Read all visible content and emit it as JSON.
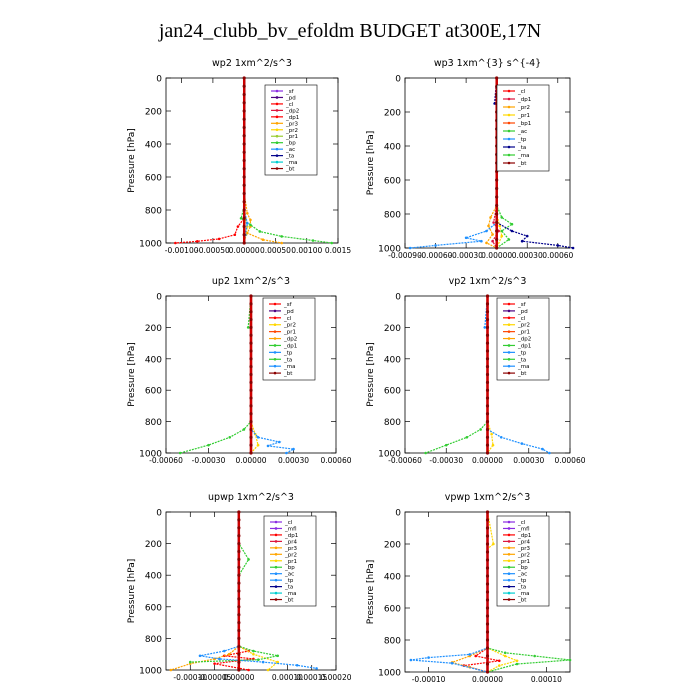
{
  "figure_title": "jan24_clubb_bv_efoldm  BUDGET at300E,17N",
  "chart_data": [
    {
      "type": "line",
      "title": "wp2   1xm^2/s^3",
      "xlabel": "",
      "ylabel": "Pressure [hPa]",
      "xlim": [
        -0.00125,
        0.0015
      ],
      "ylim": [
        1000,
        0
      ],
      "xticks": [
        -0.001,
        -0.0005,
        0.0,
        0.0005,
        0.001,
        0.0015
      ],
      "xtick_labels": [
        "-0.00100",
        "-0.00050",
        "0.00000",
        "0.00050",
        "0.00100",
        "0.0015"
      ],
      "yticks": [
        0,
        200,
        400,
        600,
        800,
        1000
      ],
      "legend": [
        "_sf",
        "_pd",
        "_cl",
        "_dp2",
        "_dp1",
        "_pr3",
        "_pr2",
        "_pr1",
        "_bp",
        "_ac",
        "_ta",
        "_ma",
        "_bt"
      ],
      "series": [
        {
          "name": "_sf",
          "color": "#8a2be2",
          "x": [
            0,
            0,
            0
          ],
          "y": [
            0,
            500,
            1000
          ]
        },
        {
          "name": "_pd",
          "color": "#4b0082",
          "x": [
            0,
            0,
            0
          ],
          "y": [
            0,
            500,
            1000
          ]
        },
        {
          "name": "_dp1",
          "color": "#ff0000",
          "x": [
            0,
            0,
            0,
            -0.0001,
            -0.00015,
            -0.0004,
            -0.00075,
            -0.0011
          ],
          "y": [
            0,
            700,
            850,
            900,
            950,
            975,
            990,
            1000
          ]
        },
        {
          "name": "_pr3",
          "color": "#ffa500",
          "x": [
            0,
            0,
            5e-05,
            0.0001,
            0.0001,
            5e-05,
            0.0003,
            0.0006
          ],
          "y": [
            0,
            700,
            820,
            860,
            900,
            940,
            980,
            1000
          ]
        },
        {
          "name": "_pr2",
          "color": "#ffd700",
          "x": [
            0,
            0,
            2e-05,
            5e-05,
            3e-05,
            0
          ],
          "y": [
            0,
            750,
            850,
            900,
            950,
            1000
          ]
        },
        {
          "name": "_bp",
          "color": "#32cd32",
          "x": [
            0,
            0,
            -5e-05,
            0.0001,
            0.00025,
            0.0006,
            0.0011,
            0.0014
          ],
          "y": [
            0,
            780,
            850,
            890,
            930,
            960,
            985,
            1000
          ]
        },
        {
          "name": "_ac",
          "color": "#1e90ff",
          "x": [
            0,
            0,
            5e-05,
            2e-05,
            0
          ],
          "y": [
            0,
            800,
            880,
            950,
            1000
          ]
        },
        {
          "name": "_ma",
          "color": "#00ced1",
          "x": [
            0,
            0,
            0
          ],
          "y": [
            0,
            500,
            1000
          ]
        },
        {
          "name": "_bt",
          "color": "#8b0000",
          "x": [
            0,
            0,
            0
          ],
          "y": [
            0,
            500,
            1000
          ]
        }
      ]
    },
    {
      "type": "line",
      "title": "wp3   1xm^{3} s^{-4}",
      "xlabel": "",
      "ylabel": "Pressure [hPa]",
      "xlim": [
        -0.0009,
        0.00072
      ],
      "ylim": [
        1000,
        0
      ],
      "xticks": [
        -0.0009,
        -0.0006,
        -0.0003,
        0.0,
        0.0003,
        0.0006
      ],
      "xtick_labels": [
        "-0.00090",
        "-0.00060",
        "-0.00030",
        "0.00000",
        "0.00030",
        "0.00060"
      ],
      "yticks": [
        0,
        200,
        400,
        600,
        800,
        1000
      ],
      "legend": [
        "_cl",
        "_dp1",
        "_pr2",
        "_pr1",
        "_bp1",
        "_ac",
        "_tp",
        "_ta",
        "_ma",
        "_bt"
      ],
      "series": [
        {
          "name": "_cl",
          "color": "#ff0000",
          "x": [
            0,
            0,
            0
          ],
          "y": [
            0,
            500,
            1000
          ]
        },
        {
          "name": "_dp1",
          "color": "#dc143c",
          "x": [
            0,
            0,
            -3e-05,
            2e-05,
            -4e-05,
            0
          ],
          "y": [
            0,
            750,
            850,
            900,
            960,
            1000
          ]
        },
        {
          "name": "_pr2",
          "color": "#ffa500",
          "x": [
            0,
            0,
            -6e-05,
            -8e-05,
            -4e-05,
            -0.0001,
            0
          ],
          "y": [
            0,
            750,
            820,
            870,
            920,
            970,
            1000
          ]
        },
        {
          "name": "_pr1",
          "color": "#ffd700",
          "x": [
            0,
            0,
            3e-05,
            5e-05,
            0
          ],
          "y": [
            0,
            800,
            870,
            930,
            1000
          ]
        },
        {
          "name": "_ac",
          "color": "#32cd32",
          "x": [
            0,
            0,
            5e-05,
            0.00015,
            5e-05,
            0.00012,
            0
          ],
          "y": [
            0,
            750,
            820,
            860,
            900,
            950,
            1000
          ]
        },
        {
          "name": "_tp",
          "color": "#1e90ff",
          "x": [
            0,
            0,
            -0.0001,
            -0.0003,
            -0.00015,
            -0.0006,
            -0.00085
          ],
          "y": [
            0,
            850,
            900,
            940,
            960,
            985,
            1000
          ]
        },
        {
          "name": "_ta",
          "color": "#00008b",
          "x": [
            0,
            -2e-05,
            2e-05,
            0,
            0,
            0.00015,
            0.0003,
            0.00025,
            0.0006,
            0.00075
          ],
          "y": [
            0,
            150,
            170,
            190,
            850,
            900,
            930,
            960,
            985,
            1000
          ]
        },
        {
          "name": "_bt",
          "color": "#8b0000",
          "x": [
            0,
            0,
            0
          ],
          "y": [
            0,
            500,
            1000
          ]
        }
      ]
    },
    {
      "type": "line",
      "title": "up2   1xm^2/s^3",
      "xlabel": "",
      "ylabel": "Pressure [hPa]",
      "xlim": [
        -0.0006,
        0.0006
      ],
      "ylim": [
        1000,
        0
      ],
      "xticks": [
        -0.0006,
        -0.0003,
        0.0,
        0.0003,
        0.0006
      ],
      "xtick_labels": [
        "-0.00060",
        "-0.00030",
        "0.00000",
        "0.00030",
        "0.00060"
      ],
      "yticks": [
        0,
        200,
        400,
        600,
        800,
        1000
      ],
      "legend": [
        "_sf",
        "_pd",
        "_cl",
        "_pr2",
        "_pr1",
        "_dp2",
        "_dp1",
        "_tp",
        "_ta",
        "_ma",
        "_bt"
      ],
      "series": [
        {
          "name": "_sf",
          "color": "#ff0000",
          "x": [
            0,
            0,
            0
          ],
          "y": [
            0,
            500,
            1000
          ]
        },
        {
          "name": "_pr2",
          "color": "#ffd700",
          "x": [
            0,
            0,
            3e-05,
            5e-05,
            0
          ],
          "y": [
            0,
            800,
            880,
            950,
            1000
          ]
        },
        {
          "name": "_dp1",
          "color": "#32cd32",
          "x": [
            0,
            -2e-05,
            0,
            0,
            -5e-05,
            -0.00015,
            -0.0003,
            -0.0005
          ],
          "y": [
            0,
            200,
            210,
            800,
            850,
            900,
            950,
            1000
          ]
        },
        {
          "name": "_tp",
          "color": "#1e90ff",
          "x": [
            0,
            0,
            5e-05,
            0.0002,
            0.00012,
            0.0003,
            0.00025
          ],
          "y": [
            0,
            850,
            900,
            930,
            955,
            975,
            1000
          ]
        },
        {
          "name": "_bt",
          "color": "#8b0000",
          "x": [
            0,
            0,
            0
          ],
          "y": [
            0,
            500,
            1000
          ]
        }
      ]
    },
    {
      "type": "line",
      "title": "vp2   1xm^2/s^3",
      "xlabel": "",
      "ylabel": "Pressure [hPa]",
      "xlim": [
        -0.0006,
        0.0006
      ],
      "ylim": [
        1000,
        0
      ],
      "xticks": [
        -0.0006,
        -0.0003,
        0.0,
        0.0003,
        0.0006
      ],
      "xtick_labels": [
        "-0.00060",
        "-0.00030",
        "0.00000",
        "0.00030",
        "0.00060"
      ],
      "yticks": [
        0,
        200,
        400,
        600,
        800,
        1000
      ],
      "legend": [
        "_sf",
        "_pd",
        "_cl",
        "_pr2",
        "_pr1",
        "_dp2",
        "_dp1",
        "_tp",
        "_ta",
        "_ma",
        "_bt"
      ],
      "series": [
        {
          "name": "_sf",
          "color": "#ff0000",
          "x": [
            0,
            0,
            0
          ],
          "y": [
            0,
            500,
            1000
          ]
        },
        {
          "name": "_pr2",
          "color": "#ffd700",
          "x": [
            0,
            0,
            3e-05,
            4e-05,
            0
          ],
          "y": [
            0,
            800,
            880,
            950,
            1000
          ]
        },
        {
          "name": "_dp1",
          "color": "#32cd32",
          "x": [
            0,
            0,
            -5e-05,
            -0.00015,
            -0.0003,
            -0.00045
          ],
          "y": [
            0,
            800,
            850,
            900,
            950,
            1000
          ]
        },
        {
          "name": "_tp",
          "color": "#1e90ff",
          "x": [
            0,
            -2e-05,
            0,
            0,
            0.0001,
            0.00025,
            0.0004,
            0.00045
          ],
          "y": [
            0,
            200,
            210,
            850,
            900,
            940,
            975,
            1000
          ]
        },
        {
          "name": "_bt",
          "color": "#8b0000",
          "x": [
            0,
            0,
            0
          ],
          "y": [
            0,
            500,
            1000
          ]
        }
      ]
    },
    {
      "type": "line",
      "title": "upwp   1xm^2/s^3",
      "xlabel": "",
      "ylabel": "Pressure [hPa]",
      "xlim": [
        -0.00015,
        0.0002
      ],
      "ylim": [
        1000,
        0
      ],
      "xticks": [
        -0.0001,
        -5e-05,
        0.0,
        0.0001,
        0.00015,
        0.0002
      ],
      "xtick_labels": [
        "-0.00010",
        "-0.00005",
        "0.00000",
        "0.00010",
        "0.00015",
        "0.00020"
      ],
      "yticks": [
        0,
        200,
        400,
        600,
        800,
        1000
      ],
      "legend": [
        "_cl",
        "_mfl",
        "_dp1",
        "_pr4",
        "_pr3",
        "_pr2",
        "_pr1",
        "_bp",
        "_ac",
        "_tp",
        "_ta",
        "_ma",
        "_bt"
      ],
      "series": [
        {
          "name": "_mfl",
          "color": "#8a2be2",
          "x": [
            0,
            0,
            0
          ],
          "y": [
            0,
            500,
            1000
          ]
        },
        {
          "name": "_dp1",
          "color": "#ff0000",
          "x": [
            0,
            0,
            2e-05,
            -3e-05,
            3e-05,
            -5e-05,
            2e-05
          ],
          "y": [
            0,
            850,
            880,
            910,
            930,
            960,
            1000
          ]
        },
        {
          "name": "_pr3",
          "color": "#ffa500",
          "x": [
            0,
            0,
            -2e-05,
            -5e-05,
            -0.0001,
            -0.00014
          ],
          "y": [
            0,
            850,
            900,
            930,
            960,
            1000
          ]
        },
        {
          "name": "_pr1",
          "color": "#ffd700",
          "x": [
            0,
            0,
            3e-05,
            8e-05,
            6e-05
          ],
          "y": [
            0,
            850,
            900,
            950,
            1000
          ]
        },
        {
          "name": "_bp",
          "color": "#32cd32",
          "x": [
            0,
            0,
            2e-05,
            0,
            0,
            3e-05,
            8e-05,
            4e-05,
            -0.0001
          ],
          "y": [
            0,
            200,
            300,
            400,
            850,
            880,
            910,
            935,
            950
          ]
        },
        {
          "name": "_ac",
          "color": "#1e90ff",
          "x": [
            0,
            0,
            -3e-05,
            -8e-05,
            -4e-05,
            5e-05,
            0.00012,
            0.00016
          ],
          "y": [
            0,
            850,
            880,
            910,
            930,
            950,
            970,
            990
          ]
        },
        {
          "name": "_bt",
          "color": "#8b0000",
          "x": [
            0,
            0,
            0
          ],
          "y": [
            0,
            500,
            1000
          ]
        }
      ]
    },
    {
      "type": "line",
      "title": "vpwp   1xm^2/s^3",
      "xlabel": "",
      "ylabel": "Pressure [hPa]",
      "xlim": [
        -0.00014,
        0.00014
      ],
      "ylim": [
        1000,
        0
      ],
      "xticks": [
        -0.0001,
        0.0,
        0.0001
      ],
      "xtick_labels": [
        "-0.00010",
        "0.00000",
        "0.00010"
      ],
      "yticks": [
        0,
        200,
        400,
        600,
        800,
        1000
      ],
      "legend": [
        "_cl",
        "_mfl",
        "_dp1",
        "_pr4",
        "_pr3",
        "_pr2",
        "_pr1",
        "_bp",
        "_ac",
        "_tp",
        "_ta",
        "_ma",
        "_bt"
      ],
      "series": [
        {
          "name": "_mfl",
          "color": "#8a2be2",
          "x": [
            0,
            0,
            0
          ],
          "y": [
            0,
            500,
            1000
          ]
        },
        {
          "name": "_dp1",
          "color": "#ff0000",
          "x": [
            0,
            0,
            -2e-05,
            2e-05,
            -4e-05,
            0
          ],
          "y": [
            0,
            850,
            900,
            930,
            960,
            1000
          ]
        },
        {
          "name": "_pr3",
          "color": "#ffa500",
          "x": [
            0,
            0,
            -3e-05,
            -6e-05,
            -3e-05,
            0
          ],
          "y": [
            0,
            850,
            900,
            940,
            970,
            1000
          ]
        },
        {
          "name": "_pr1",
          "color": "#ffd700",
          "x": [
            0,
            1e-05,
            0,
            0,
            3e-05,
            5e-05,
            2e-05,
            0
          ],
          "y": [
            0,
            200,
            230,
            850,
            900,
            930,
            960,
            1000
          ]
        },
        {
          "name": "_bp",
          "color": "#32cd32",
          "x": [
            0,
            0,
            3e-05,
            8e-05,
            0.00014,
            5e-05,
            0
          ],
          "y": [
            0,
            850,
            880,
            900,
            925,
            950,
            1000
          ]
        },
        {
          "name": "_ac",
          "color": "#1e90ff",
          "x": [
            0,
            0,
            -3e-05,
            -0.0001,
            -0.00013,
            -6e-05,
            0
          ],
          "y": [
            0,
            850,
            890,
            910,
            925,
            945,
            1000
          ]
        },
        {
          "name": "_bt",
          "color": "#8b0000",
          "x": [
            0,
            0,
            0
          ],
          "y": [
            0,
            500,
            1000
          ]
        }
      ]
    }
  ]
}
